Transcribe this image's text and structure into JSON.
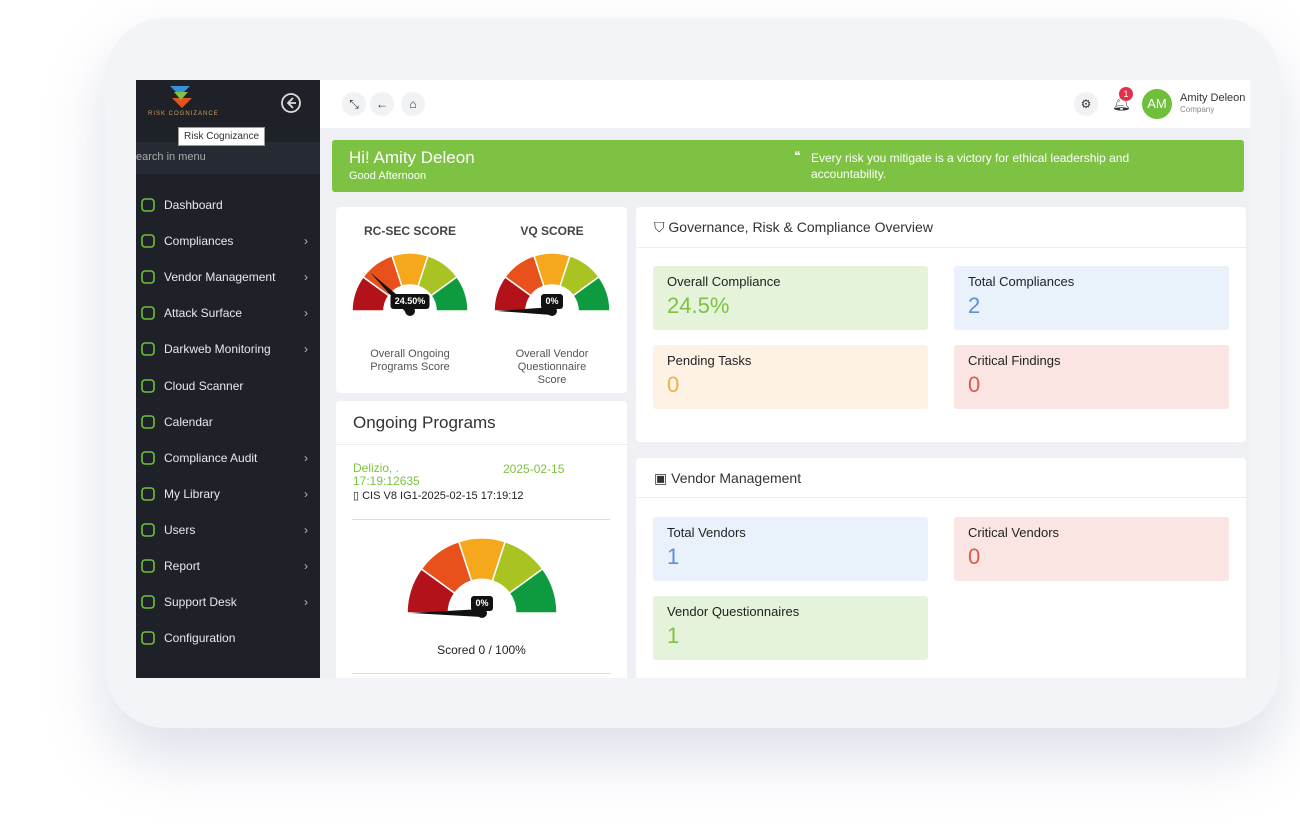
{
  "sidebar": {
    "logo": "RISK COGNIZANCE",
    "tooltip": "Risk Cognizance",
    "search": "earch in menu",
    "menu": [
      {
        "label": "Dashboard",
        "submenu": false
      },
      {
        "label": "Compliances",
        "submenu": true
      },
      {
        "label": "Vendor Management",
        "submenu": true
      },
      {
        "label": "Attack Surface",
        "submenu": true
      },
      {
        "label": "Darkweb Monitoring",
        "submenu": true
      },
      {
        "label": "Cloud Scanner",
        "submenu": false
      },
      {
        "label": "Calendar",
        "submenu": false
      },
      {
        "label": "Compliance Audit",
        "submenu": true
      },
      {
        "label": "My Library",
        "submenu": true
      },
      {
        "label": "Users",
        "submenu": true
      },
      {
        "label": "Report",
        "submenu": true
      },
      {
        "label": "Support Desk",
        "submenu": true
      },
      {
        "label": "Configuration",
        "submenu": false
      }
    ]
  },
  "topbar": {
    "notifications": 1,
    "avatar": "AM",
    "user_name": "Amity Deleon",
    "user_role": "Company"
  },
  "banner": {
    "greeting": "Hi! Amity Deleon",
    "subtitle": "Good Afternoon",
    "quote": "Every risk you mitigate is a victory for ethical leadership and accountability."
  },
  "scores": [
    {
      "title": "RC-SEC SCORE",
      "gauge": {
        "value": 24.5,
        "label": "24.50%",
        "range": [
          0,
          100
        ]
      },
      "caption": "Overall Ongoing Programs Score"
    },
    {
      "title": "VQ SCORE",
      "gauge": {
        "value": 0,
        "label": "0%",
        "range": [
          0,
          100
        ]
      },
      "caption": "Overall Vendor Questionnaire Score"
    }
  ],
  "ongoing_programs": {
    "title": "Ongoing Programs",
    "program": {
      "name": "Delizio, . 17:19:12635",
      "date": "2025-02-15",
      "assessment": "CIS V8 IG1-2025-02-15 17:19:12"
    },
    "gauge": {
      "value": 0,
      "label": "0%",
      "range": [
        0,
        100
      ]
    },
    "score_text": "Scored 0 / 100%"
  },
  "grc": {
    "title": "Governance, Risk & Compliance Overview",
    "tiles": [
      {
        "label": "Overall Compliance",
        "value": "24.5%",
        "tone": "green"
      },
      {
        "label": "Total Compliances",
        "value": 2,
        "tone": "blue"
      },
      {
        "label": "Pending Tasks",
        "value": 0,
        "tone": "orange"
      },
      {
        "label": "Critical Findings",
        "value": 0,
        "tone": "red"
      }
    ]
  },
  "vendor": {
    "title": "Vendor Management",
    "tiles": [
      {
        "label": "Total Vendors",
        "value": 1,
        "tone": "blue"
      },
      {
        "label": "Critical Vendors",
        "value": 0,
        "tone": "red"
      },
      {
        "label": "Vendor Questionnaires",
        "value": 1,
        "tone": "green"
      }
    ]
  }
}
